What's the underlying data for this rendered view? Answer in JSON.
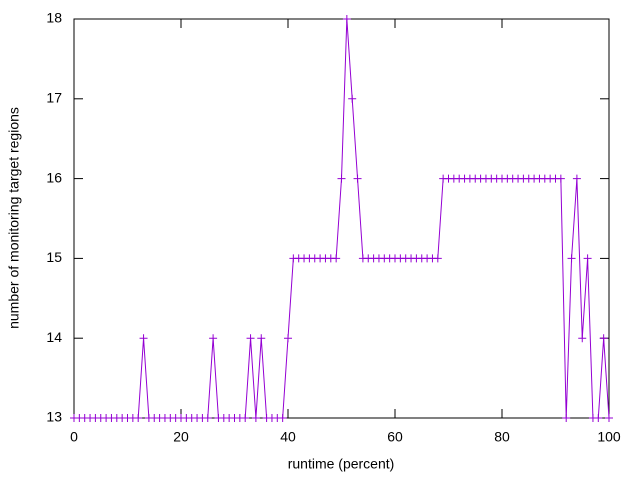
{
  "chart_data": {
    "type": "line",
    "x_label": "runtime (percent)",
    "y_label": "number of monitoring target regions",
    "x": [
      0,
      1,
      2,
      3,
      4,
      5,
      6,
      7,
      8,
      9,
      10,
      11,
      12,
      13,
      14,
      15,
      16,
      17,
      18,
      19,
      20,
      21,
      22,
      23,
      24,
      25,
      26,
      27,
      28,
      29,
      30,
      31,
      32,
      33,
      34,
      35,
      36,
      37,
      38,
      39,
      40,
      41,
      42,
      43,
      44,
      45,
      46,
      47,
      48,
      49,
      50,
      51,
      52,
      53,
      54,
      55,
      56,
      57,
      58,
      59,
      60,
      61,
      62,
      63,
      64,
      65,
      66,
      67,
      68,
      69,
      70,
      71,
      72,
      73,
      74,
      75,
      76,
      77,
      78,
      79,
      80,
      81,
      82,
      83,
      84,
      85,
      86,
      87,
      88,
      89,
      90,
      91,
      92,
      93,
      94,
      95,
      96,
      97,
      98,
      99,
      100
    ],
    "values": [
      13,
      13,
      13,
      13,
      13,
      13,
      13,
      13,
      13,
      13,
      13,
      13,
      13,
      14,
      13,
      13,
      13,
      13,
      13,
      13,
      13,
      13,
      13,
      13,
      13,
      13,
      14,
      13,
      13,
      13,
      13,
      13,
      13,
      14,
      13,
      14,
      13,
      13,
      13,
      13,
      14,
      15,
      15,
      15,
      15,
      15,
      15,
      15,
      15,
      15,
      16,
      18,
      17,
      16,
      15,
      15,
      15,
      15,
      15,
      15,
      15,
      15,
      15,
      15,
      15,
      15,
      15,
      15,
      15,
      16,
      16,
      16,
      16,
      16,
      16,
      16,
      16,
      16,
      16,
      16,
      16,
      16,
      16,
      16,
      16,
      16,
      16,
      16,
      16,
      16,
      16,
      16,
      13,
      15,
      16,
      14,
      15,
      13,
      13,
      14,
      13
    ],
    "color": "#9400d3",
    "xlim": [
      0,
      100
    ],
    "xticks": [
      0,
      20,
      40,
      60,
      80,
      100
    ],
    "ylim": [
      13,
      18
    ],
    "yticks": [
      13,
      14,
      15,
      16,
      17,
      18
    ]
  }
}
